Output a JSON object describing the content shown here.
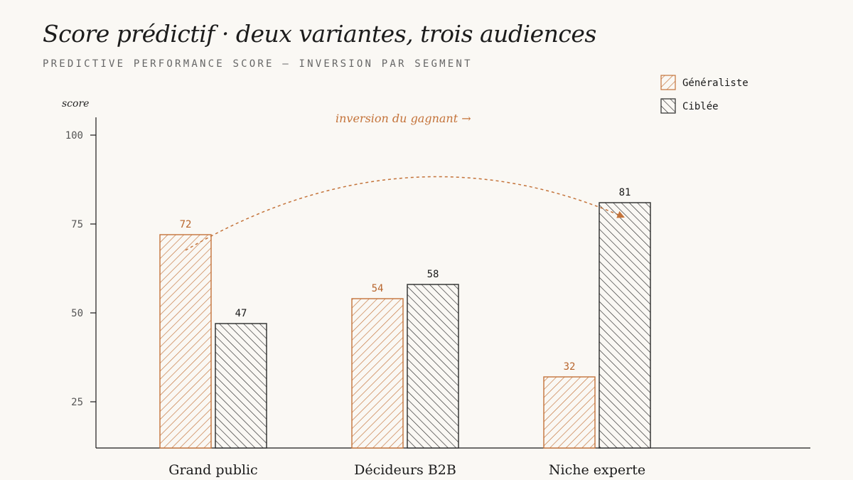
{
  "title": "Score prédictif · deux variantes, trois audiences",
  "subtitle": "PREDICTIVE PERFORMANCE SCORE — INVERSION PAR SEGMENT",
  "colors": {
    "background": "#faf8f4",
    "generaliste": "#c4733a",
    "ciblee": "#2a2a2a",
    "annotation": "#c4733a"
  },
  "chart_data": {
    "type": "bar",
    "title": "Score prédictif · deux variantes, trois audiences",
    "subtitle": "PREDICTIVE PERFORMANCE SCORE — INVERSION PAR SEGMENT",
    "ylabel": "score",
    "xlabel": "",
    "ylim": [
      12,
      108
    ],
    "yticks": [
      25,
      50,
      75,
      100
    ],
    "grid": false,
    "legend_position": "top-right",
    "categories": [
      "Grand public",
      "Décideurs B2B",
      "Niche experte"
    ],
    "series": [
      {
        "name": "Généraliste",
        "values": [
          72,
          54,
          32
        ],
        "color": "#c4733a",
        "pattern": "hatch-forward"
      },
      {
        "name": "Ciblée",
        "values": [
          47,
          58,
          81
        ],
        "color": "#2a2a2a",
        "pattern": "hatch-backward"
      }
    ],
    "annotation": {
      "text": "inversion du gagnant →",
      "from": "Grand public · Généraliste",
      "to": "Niche experte · Ciblée"
    }
  }
}
